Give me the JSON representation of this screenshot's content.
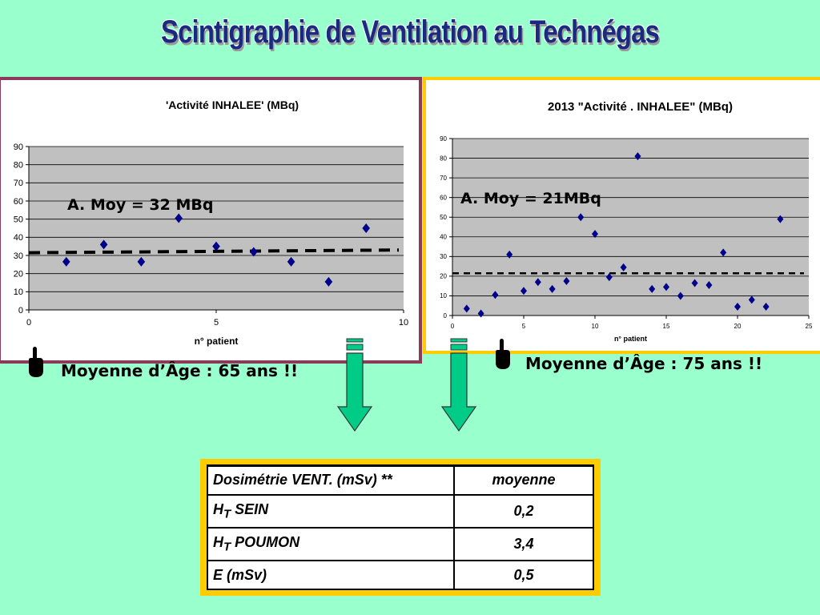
{
  "slide": {
    "title": "Scintigraphie  de Ventilation au  Technégas"
  },
  "colors": {
    "background": "#99ffcc",
    "title": "#1a2a80",
    "left_frame": "#8a3a5a",
    "right_frame": "#ffcc00",
    "plot_area": "#c0c0c0",
    "marker": "#00008b",
    "arrow_fill": "#00cc88"
  },
  "chart_data": [
    {
      "type": "scatter",
      "title": "'Activité INHALEE'  (MBq)",
      "xlabel": "n° patient",
      "ylabel": "",
      "xlim": [
        0,
        10
      ],
      "ylim": [
        0,
        90
      ],
      "x_ticks": [
        0,
        5,
        10
      ],
      "y_ticks": [
        0,
        10,
        20,
        30,
        40,
        50,
        60,
        70,
        80,
        90
      ],
      "grid": true,
      "series": [
        {
          "x": [
            1,
            2,
            3,
            4,
            5,
            6,
            7,
            8,
            9
          ],
          "y": [
            26.5,
            36,
            26.5,
            50.5,
            35,
            32,
            26.5,
            15.5,
            45
          ]
        }
      ],
      "mean_line": 32,
      "mean_line_ends": [
        31.5,
        33
      ],
      "annotation": "A. Moy = 32 MBq"
    },
    {
      "type": "scatter",
      "title": "2013 \"Activité . INHALEE\" (MBq)",
      "xlabel": "n° patient",
      "ylabel": "",
      "xlim": [
        0,
        25
      ],
      "ylim": [
        0,
        90
      ],
      "x_ticks": [
        0,
        5,
        10,
        15,
        20,
        25
      ],
      "y_ticks": [
        0,
        10,
        20,
        30,
        40,
        50,
        60,
        70,
        80,
        90
      ],
      "grid": true,
      "series": [
        {
          "x": [
            1,
            2,
            3,
            4,
            5,
            6,
            7,
            8,
            9,
            10,
            11,
            12,
            13,
            14,
            15,
            16,
            17,
            18,
            19,
            20,
            21,
            22,
            23
          ],
          "y": [
            3.5,
            1,
            10.5,
            31,
            12.5,
            17,
            13.5,
            17.5,
            50,
            41.5,
            19.5,
            24.5,
            81,
            13.5,
            14.5,
            10,
            16.5,
            15.5,
            32,
            4.5,
            8,
            4.5,
            49
          ]
        }
      ],
      "mean_line": 21.5,
      "annotation": "A. Moy = 21MBq"
    }
  ],
  "notes": {
    "left": "Moyenne d’Âge : 65 ans !!",
    "right": "Moyenne d’Âge : 75 ans !!"
  },
  "icons": {
    "pointer": "pointing-hand-icon",
    "arrow": "down-arrow-icon"
  },
  "dosimetry": {
    "header": "Dosimétrie VENT. (mSv) **",
    "col_header": "moyenne",
    "rows": [
      {
        "label_main": "H",
        "label_sub": "T",
        "label_rest": " SEIN ",
        "value": "0,2"
      },
      {
        "label_main": "H",
        "label_sub": "T",
        "label_rest": " POUMON ",
        "value": "3,4"
      },
      {
        "label_main": "E (mSv)",
        "label_sub": "",
        "label_rest": "",
        "value": "0,5"
      }
    ]
  }
}
